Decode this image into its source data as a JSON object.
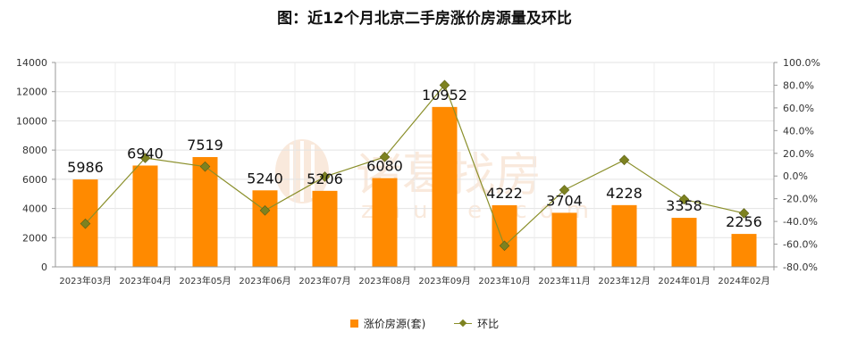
{
  "chart_data": {
    "type": "bar",
    "title": "图：近12个月北京二手房涨价房源量及环比",
    "categories": [
      "2023年03月",
      "2023年04月",
      "2023年05月",
      "2023年06月",
      "2023年07月",
      "2023年08月",
      "2023年09月",
      "2023年10月",
      "2023年11月",
      "2023年12月",
      "2024年01月",
      "2024年02月"
    ],
    "series": [
      {
        "name": "涨价房源(套)",
        "type": "bar",
        "axis": "left",
        "color": "#ff8a00",
        "values": [
          5986,
          6940,
          7519,
          5240,
          5206,
          6080,
          10952,
          4222,
          3704,
          4228,
          3358,
          2256
        ]
      },
      {
        "name": "环比",
        "type": "line",
        "axis": "right",
        "color": "#8a8f2a",
        "values": [
          -42.0,
          15.9,
          8.3,
          -30.3,
          -0.6,
          16.8,
          80.1,
          -61.4,
          -12.3,
          14.1,
          -20.6,
          -32.8
        ]
      }
    ],
    "ylim": [
      0,
      14000
    ],
    "yticks": [
      0,
      2000,
      4000,
      6000,
      8000,
      10000,
      12000,
      14000
    ],
    "y2lim": [
      -80,
      100
    ],
    "y2ticks": [
      "-80.0%",
      "-60.0%",
      "-40.0%",
      "-20.0%",
      "0.0%",
      "20.0%",
      "40.0%",
      "60.0%",
      "80.0%",
      "100.0%"
    ],
    "grid": true,
    "legend": "bottom-center"
  },
  "watermark": {
    "text": "诸葛找房",
    "subtext": "zhuge.com"
  }
}
